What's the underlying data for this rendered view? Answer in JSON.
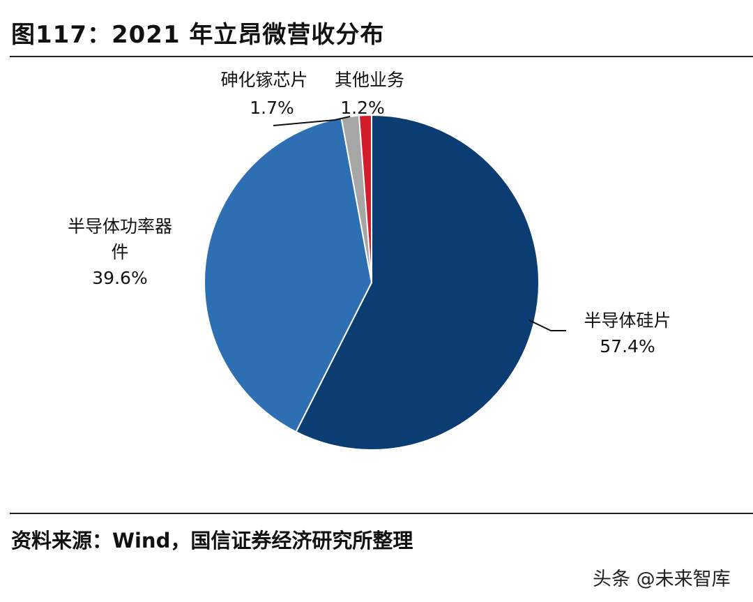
{
  "title": "图117：2021 年立昂微营收分布",
  "source": "资料来源：Wind，国信证券经济研究所整理",
  "watermark": {
    "text": "头条 @未来智库",
    "logo_text": "未来智库"
  },
  "chart_data": {
    "type": "pie",
    "start": "12 o'clock",
    "direction": "clockwise",
    "slices": [
      {
        "label": "半导体硅片",
        "value": 57.4,
        "value_label": "57.4%",
        "color": "#0b3d73"
      },
      {
        "label": "半导体功率器件",
        "value": 39.6,
        "value_label": "39.6%",
        "color": "#2e6fb4"
      },
      {
        "label": "砷化镓芯片",
        "value": 1.7,
        "value_label": "1.7%",
        "color": "#a6a6a6"
      },
      {
        "label": "其他业务",
        "value": 1.2,
        "value_label": "1.2%",
        "color": "#d21e2b"
      }
    ],
    "label_lines": [
      "半导体功率器",
      "件"
    ]
  }
}
